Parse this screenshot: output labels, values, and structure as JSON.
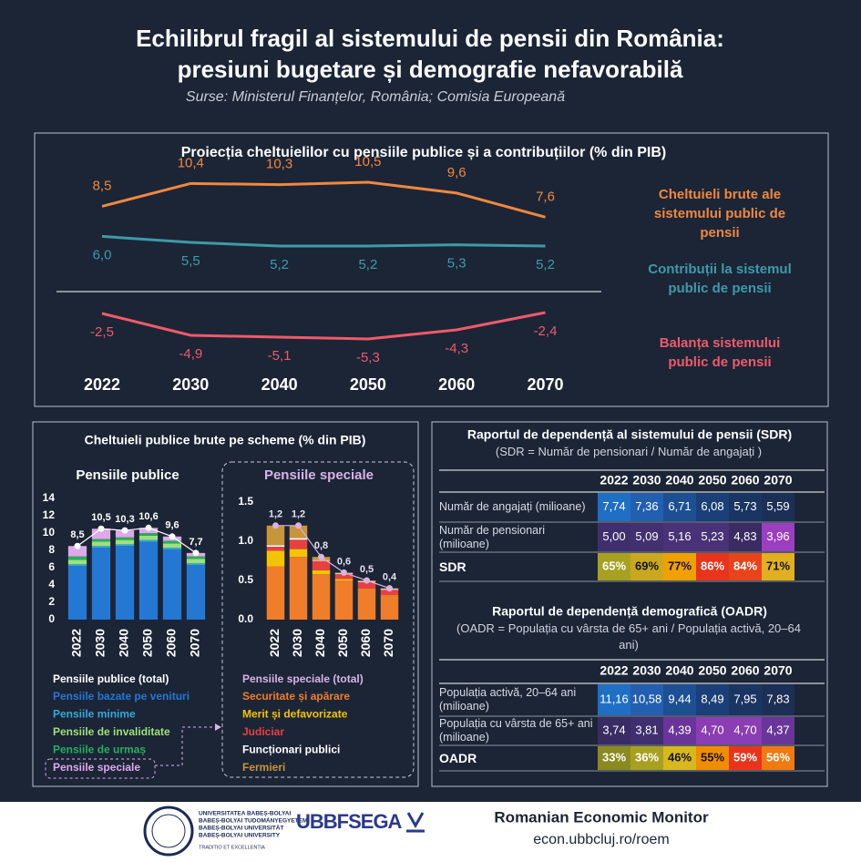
{
  "header": {
    "title_lines": [
      "Echilibrul fragil al sistemului de pensii din România:",
      "presiuni bugetare și demografie nefavorabilă"
    ],
    "subtitle": "Surse: Ministerul Finanțelor, România; Comisia Europeană"
  },
  "panel_title": "Cheltuieli publice brute pe scheme (% din PIB)",
  "chart_data": [
    {
      "type": "line",
      "title": "Proiecția cheltuielilor cu pensiile publice și a contribuțiilor (% din PIB)",
      "categories": [
        "2022",
        "2030",
        "2040",
        "2050",
        "2060",
        "2070"
      ],
      "series": [
        {
          "name": "Cheltuieli brute ale sistemului public de pensii",
          "color": "#f0883e",
          "values": [
            8.5,
            10.4,
            10.3,
            10.5,
            9.6,
            7.6
          ],
          "value_labels": [
            "8,5",
            "10,4",
            "10,3",
            "10,5",
            "9,6",
            "7,6"
          ]
        },
        {
          "name": "Contribuții la sistemul public de pensii",
          "color": "#3f9aa8",
          "values": [
            6.0,
            5.5,
            5.2,
            5.2,
            5.3,
            5.2
          ],
          "value_labels": [
            "6,0",
            "5,5",
            "5,2",
            "5,2",
            "5,3",
            "5,2"
          ]
        },
        {
          "name": "Balanța sistemului public de pensii",
          "color": "#ef5a6a",
          "axis": "y2",
          "values": [
            -2.5,
            -4.9,
            -5.1,
            -5.3,
            -4.3,
            -2.4
          ],
          "value_labels": [
            "-2,5",
            "-4,9",
            "-5,1",
            "-5,3",
            "-4,3",
            "-2,4"
          ]
        }
      ]
    },
    {
      "type": "stacked_bar",
      "title": "Pensiile publice",
      "categories": [
        "2022",
        "2030",
        "2040",
        "2050",
        "2060",
        "2070"
      ],
      "ylim": [
        0,
        14
      ],
      "yticks": [
        0,
        2,
        4,
        6,
        8,
        10,
        12,
        14
      ],
      "total": {
        "name": "Pensiile publice (total)",
        "color": "#ffffff",
        "values": [
          8.5,
          10.5,
          10.3,
          10.6,
          9.6,
          7.7
        ],
        "value_labels": [
          "8,5",
          "10,5",
          "10,3",
          "10,6",
          "9,6",
          "7,7"
        ]
      },
      "series": [
        {
          "name": "Pensiile bazate pe venituri",
          "color": "#2478d4",
          "values": [
            6.2,
            8.3,
            8.5,
            9.0,
            8.1,
            6.3
          ]
        },
        {
          "name": "Pensiile minime",
          "color": "#35a8d8",
          "values": [
            0.2,
            0.2,
            0.2,
            0.2,
            0.2,
            0.2
          ]
        },
        {
          "name": "Pensiile de invaliditate",
          "color": "#9ee07a",
          "values": [
            0.5,
            0.5,
            0.5,
            0.5,
            0.5,
            0.5
          ]
        },
        {
          "name": "Pensiile de urmaș",
          "color": "#27ae60",
          "values": [
            0.4,
            0.3,
            0.3,
            0.3,
            0.3,
            0.3
          ]
        },
        {
          "name": "Pensiile speciale",
          "color": "#e0a8e8",
          "values": [
            1.2,
            1.2,
            0.8,
            0.6,
            0.5,
            0.4
          ]
        }
      ]
    },
    {
      "type": "stacked_bar",
      "title": "Pensiile speciale",
      "categories": [
        "2022",
        "2030",
        "2040",
        "2050",
        "2060",
        "2070"
      ],
      "ylim": [
        0,
        1.5
      ],
      "yticks": [
        {
          "value": 0,
          "label": "0.0"
        },
        0.5,
        {
          "value": 1,
          "label": "1.0"
        },
        1.5
      ],
      "total": {
        "name": "Pensiile speciale (total)",
        "color": "#d9b3e6",
        "values": [
          1.2,
          1.2,
          0.8,
          0.6,
          0.5,
          0.4
        ],
        "value_labels": [
          "1,2",
          "1,2",
          "0,8",
          "0,6",
          "0,5",
          "0,4"
        ]
      },
      "series": [
        {
          "name": "Securitate și apărare",
          "color": "#f07d2a",
          "values": [
            0.68,
            0.8,
            0.58,
            0.5,
            0.38,
            0.3
          ]
        },
        {
          "name": "Merit și defavorizate",
          "color": "#f5c400",
          "values": [
            0.2,
            0.1,
            0.05,
            0.02,
            0.01,
            0.01
          ]
        },
        {
          "name": "Judiciar",
          "color": "#e84040",
          "values": [
            0.05,
            0.12,
            0.12,
            0.06,
            0.09,
            0.07
          ]
        },
        {
          "name": "Funcționari publici",
          "color": "#ffffff",
          "values": [
            0.02,
            0.02,
            0.01,
            0.01,
            0.01,
            0.01
          ]
        },
        {
          "name": "Fermieri",
          "color": "#c8963a",
          "values": [
            0.25,
            0.16,
            0.04,
            0.01,
            0.01,
            0.01
          ]
        }
      ]
    }
  ],
  "tables": [
    {
      "title": "Raportul de dependență al sistemului de pensii (SDR)",
      "subtitle": "(SDR = Număr de pensionari / Număr de angajați )",
      "columns": [
        "2022",
        "2030",
        "2040",
        "2050",
        "2060",
        "2070"
      ],
      "rows": [
        {
          "label": "Număr de angajați (milioane)",
          "cells": [
            "7,74",
            "7,36",
            "6,71",
            "6,08",
            "5,73",
            "5,59"
          ],
          "colors": [
            "#1f6fc5",
            "#235fb0",
            "#1d4f93",
            "#1b3f78",
            "#1b3563",
            "#1c2f55"
          ]
        },
        {
          "label": "Număr de pensionari (milioane)",
          "cells": [
            "5,00",
            "5,09",
            "5,16",
            "5,23",
            "4,83",
            "3,96"
          ],
          "colors": [
            "#3f2f6e",
            "#42306f",
            "#4a3278",
            "#4a3278",
            "#3a2c63",
            "#9b3fc0"
          ]
        },
        {
          "label": "SDR",
          "cells": [
            "65%",
            "69%",
            "77%",
            "86%",
            "84%",
            "71%"
          ],
          "colors": [
            "#a8a020",
            "#c9a81f",
            "#f0a000",
            "#e8341c",
            "#e8441c",
            "#e0b020"
          ]
        }
      ]
    },
    {
      "title": "Raportul de dependență demografică (OADR)",
      "subtitle": "(OADR = Populația cu vârsta de 65+ ani / Populația activă, 20–64 ani)",
      "columns": [
        "2022",
        "2030",
        "2040",
        "2050",
        "2060",
        "2070"
      ],
      "rows": [
        {
          "label": "Populația activă, 20–64 ani (milioane)",
          "cells": [
            "11,16",
            "10,58",
            "9,44",
            "8,49",
            "7,95",
            "7,83"
          ],
          "colors": [
            "#1f6fc5",
            "#235fb0",
            "#1d4f93",
            "#1b3f78",
            "#1b3563",
            "#1c2f55"
          ]
        },
        {
          "label": "Populația cu vârsta de 65+ ani (milioane)",
          "cells": [
            "3,74",
            "3,81",
            "4,39",
            "4,70",
            "4,70",
            "4,37"
          ],
          "colors": [
            "#3a2c63",
            "#3f2f6e",
            "#6a359a",
            "#8b3db3",
            "#8b3db3",
            "#6a359a"
          ]
        },
        {
          "label": "OADR",
          "cells": [
            "33%",
            "36%",
            "46%",
            "55%",
            "59%",
            "56%"
          ],
          "colors": [
            "#8a8a20",
            "#a8a020",
            "#d8b81f",
            "#f08c00",
            "#e8341c",
            "#f07a10"
          ]
        }
      ]
    }
  ],
  "footer": {
    "university_lines": [
      "UNIVERSITATEA BABEȘ-BOLYAI",
      "BABEȘ-BOLYAI TUDOMÁNYEGYETEM",
      "BABEȘ-BOLYAI UNIVERSITÄT",
      "BABEȘ-BOLYAI UNIVERSITY"
    ],
    "motto": "TRADITIO ET EXCELLENTIA",
    "faculty": "UBBFSEGA",
    "monitor": "Romanian Economic Monitor",
    "url": "econ.ubbcluj.ro/roem"
  }
}
